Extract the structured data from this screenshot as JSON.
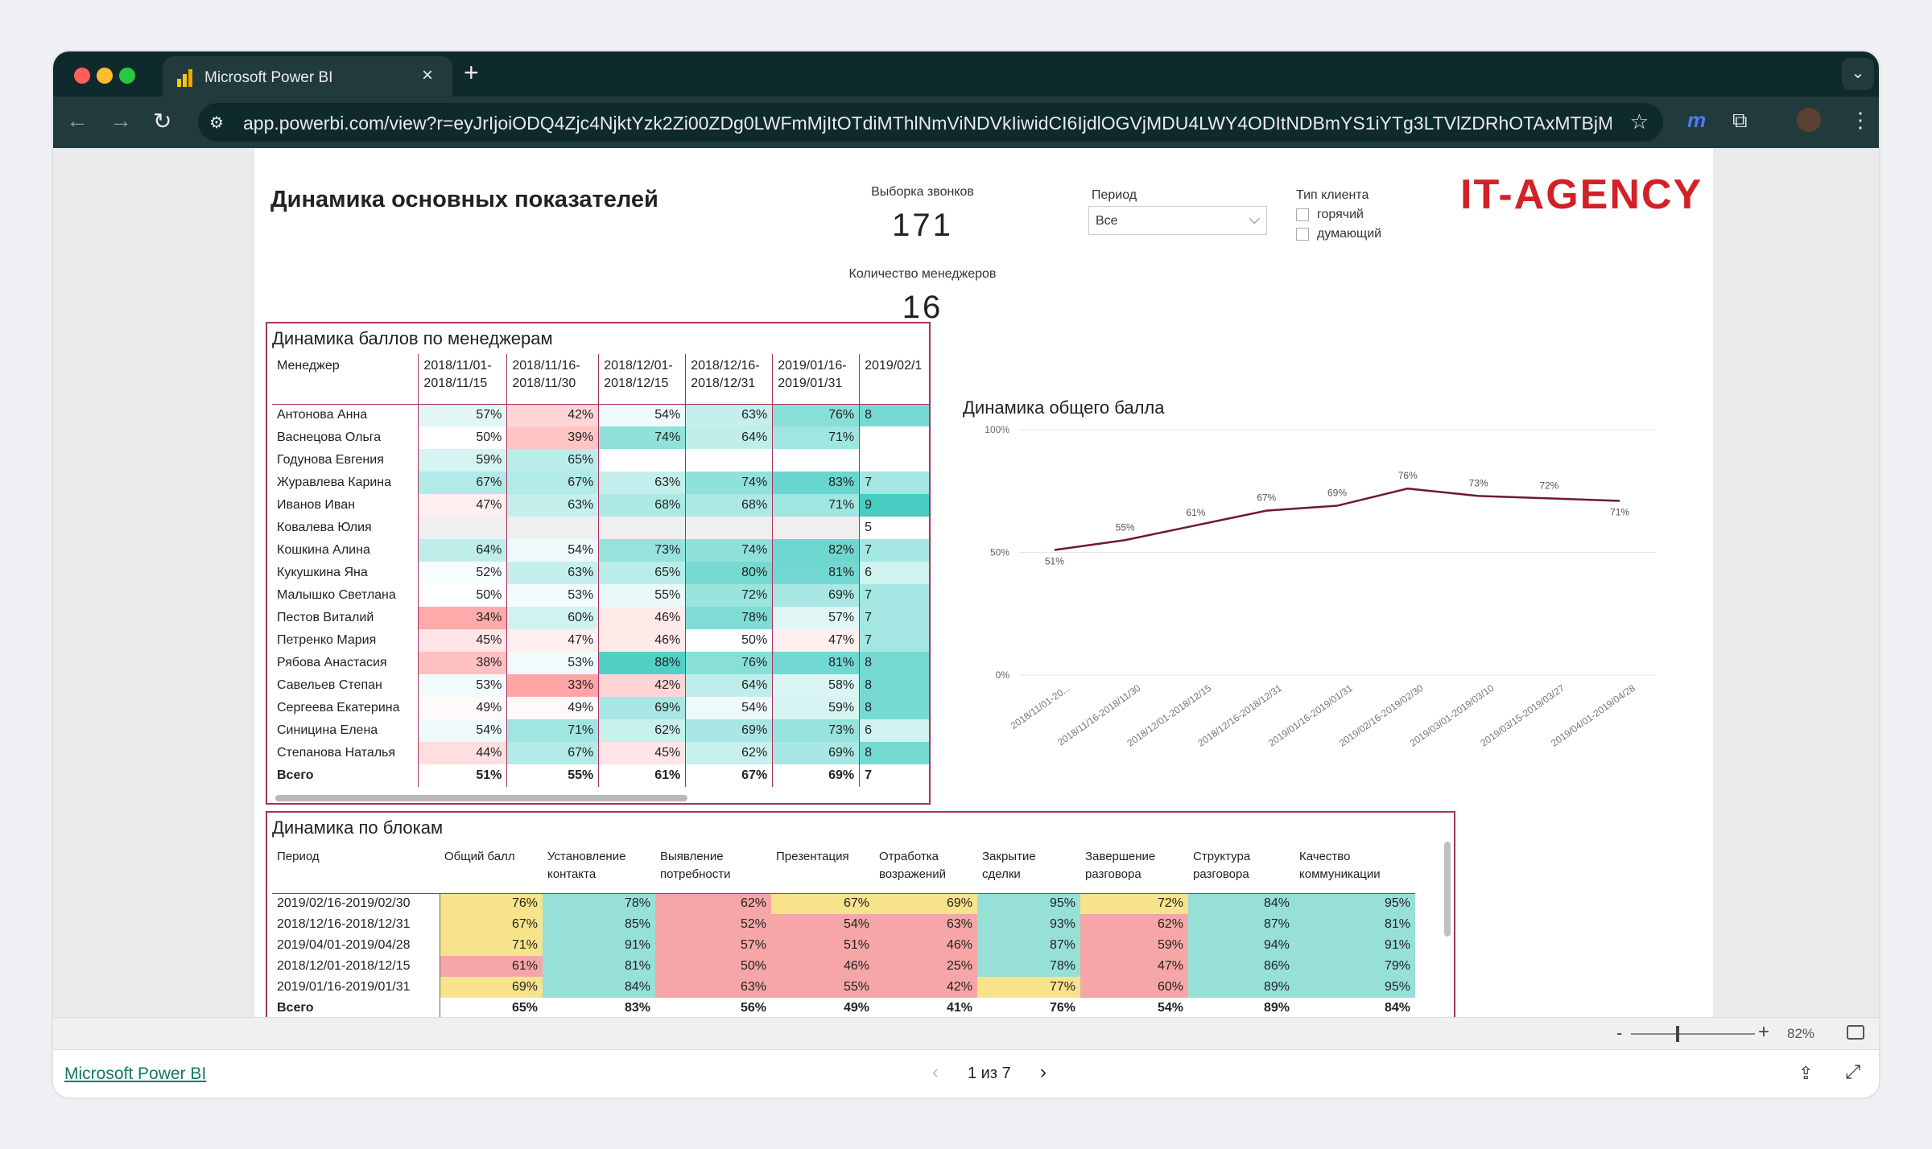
{
  "browser": {
    "tab_title": "Microsoft Power BI",
    "url": "app.powerbi.com/view?r=eyJrIjoiODQ4Zjc4NjktYzk2Zi00ZDg0LWFmMjItOTdiMThlNmViNDVkIiwidCI6IjdlOGVjMDU4LWY4ODItNDBmYS1iYTg3LTVlZDRhOTAxMTBjMi..."
  },
  "report": {
    "title": "Динамика основных показателей",
    "calls_label": "Выборка звонков",
    "calls_value": "171",
    "managers_label": "Количество менеджеров",
    "managers_value": "16",
    "logo": "IT-AGENCY"
  },
  "filters": {
    "period_label": "Период",
    "period_value": "Все",
    "client_label": "Тип клиента",
    "client_options": [
      "горячий",
      "думающий"
    ]
  },
  "managers_table": {
    "title": "Динамика баллов по менеджерам",
    "header": "Менеджер",
    "periods": [
      "2018/11/01-2018/11/15",
      "2018/11/16-2018/11/30",
      "2018/12/01-2018/12/15",
      "2018/12/16-2018/12/31",
      "2019/01/16-2019/01/31",
      "2019/02/1"
    ],
    "rows": [
      {
        "name": "Антонова Анна",
        "v": [
          "57%",
          "42%",
          "54%",
          "63%",
          "76%",
          "8"
        ]
      },
      {
        "name": "Васнецова Ольга",
        "v": [
          "50%",
          "39%",
          "74%",
          "64%",
          "71%",
          ""
        ]
      },
      {
        "name": "Годунова Евгения",
        "v": [
          "59%",
          "65%",
          "",
          "",
          "",
          ""
        ]
      },
      {
        "name": "Журавлева Карина",
        "v": [
          "67%",
          "67%",
          "63%",
          "74%",
          "83%",
          "7"
        ]
      },
      {
        "name": "Иванов Иван",
        "v": [
          "47%",
          "63%",
          "68%",
          "68%",
          "71%",
          "9"
        ]
      },
      {
        "name": "Ковалева Юлия",
        "v": [
          "",
          "",
          "",
          "",
          "",
          "5"
        ]
      },
      {
        "name": "Кошкина Алина",
        "v": [
          "64%",
          "54%",
          "73%",
          "74%",
          "82%",
          "7"
        ]
      },
      {
        "name": "Кукушкина Яна",
        "v": [
          "52%",
          "63%",
          "65%",
          "80%",
          "81%",
          "6"
        ]
      },
      {
        "name": "Малышко Светлана",
        "v": [
          "50%",
          "53%",
          "55%",
          "72%",
          "69%",
          "7"
        ]
      },
      {
        "name": "Пестов Виталий",
        "v": [
          "34%",
          "60%",
          "46%",
          "78%",
          "57%",
          "7"
        ]
      },
      {
        "name": "Петренко Мария",
        "v": [
          "45%",
          "47%",
          "46%",
          "50%",
          "47%",
          "7"
        ]
      },
      {
        "name": "Рябова Анастасия",
        "v": [
          "38%",
          "53%",
          "88%",
          "76%",
          "81%",
          "8"
        ]
      },
      {
        "name": "Савельев Степан",
        "v": [
          "53%",
          "33%",
          "42%",
          "64%",
          "58%",
          "8"
        ]
      },
      {
        "name": "Сергеева Екатерина",
        "v": [
          "49%",
          "49%",
          "69%",
          "54%",
          "59%",
          "8"
        ]
      },
      {
        "name": "Синицина Елена",
        "v": [
          "54%",
          "71%",
          "62%",
          "69%",
          "73%",
          "6"
        ]
      },
      {
        "name": "Степанова Наталья",
        "v": [
          "44%",
          "67%",
          "45%",
          "62%",
          "69%",
          "8"
        ]
      }
    ],
    "total": {
      "name": "Всего",
      "v": [
        "51%",
        "55%",
        "61%",
        "67%",
        "69%",
        "7"
      ]
    }
  },
  "blocks_table": {
    "title": "Динамика по блокам",
    "headers": [
      "Период",
      "Общий балл",
      "Установление контакта",
      "Выявление потребности",
      "Презентация",
      "Отработка возражений",
      "Закрытие сделки",
      "Завершение разговора",
      "Структура разговора",
      "Качество коммуникации"
    ],
    "rows": [
      {
        "p": "2019/02/16-2019/02/30",
        "v": [
          "76%",
          "78%",
          "62%",
          "67%",
          "69%",
          "95%",
          "72%",
          "84%",
          "95%"
        ]
      },
      {
        "p": "2018/12/16-2018/12/31",
        "v": [
          "67%",
          "85%",
          "52%",
          "54%",
          "63%",
          "93%",
          "62%",
          "87%",
          "81%"
        ]
      },
      {
        "p": "2019/04/01-2019/04/28",
        "v": [
          "71%",
          "91%",
          "57%",
          "51%",
          "46%",
          "87%",
          "59%",
          "94%",
          "91%"
        ]
      },
      {
        "p": "2018/12/01-2018/12/15",
        "v": [
          "61%",
          "81%",
          "50%",
          "46%",
          "25%",
          "78%",
          "47%",
          "86%",
          "79%"
        ]
      },
      {
        "p": "2019/01/16-2019/01/31",
        "v": [
          "69%",
          "84%",
          "63%",
          "55%",
          "42%",
          "77%",
          "60%",
          "89%",
          "95%"
        ]
      }
    ],
    "total": {
      "p": "Всего",
      "v": [
        "65%",
        "83%",
        "56%",
        "49%",
        "41%",
        "76%",
        "54%",
        "89%",
        "84%"
      ]
    }
  },
  "chart_data": {
    "type": "line",
    "title": "Динамика общего балла",
    "x": [
      "2018/11/01-20...",
      "2018/11/16-2018/11/30",
      "2018/12/01-2018/12/15",
      "2018/12/16-2018/12/31",
      "2019/01/16-2019/01/31",
      "2019/02/16-2019/02/30",
      "2019/03/01-2019/03/10",
      "2019/03/15-2019/03/27",
      "2019/04/01-2019/04/28"
    ],
    "series": [
      {
        "values": [
          51,
          55,
          61,
          67,
          69,
          76,
          73,
          72,
          71
        ]
      }
    ],
    "labels": [
      "51%",
      "55%",
      "61%",
      "67%",
      "69%",
      "76%",
      "73%",
      "72%",
      "71%"
    ],
    "yticks": [
      "0%",
      "50%",
      "100%"
    ],
    "ylim": [
      0,
      100
    ],
    "color": "#6e1a2e"
  },
  "zoom": {
    "minus": "-",
    "plus": "+",
    "value": "82%"
  },
  "footer": {
    "brand": "Microsoft Power BI",
    "page": "1 из 7"
  }
}
